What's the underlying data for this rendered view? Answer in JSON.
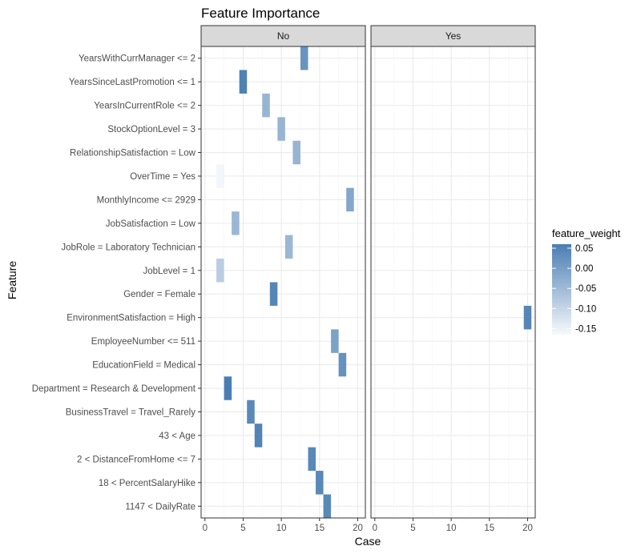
{
  "chart_data": {
    "type": "heatmap",
    "title": "Feature Importance",
    "xlabel": "Case",
    "ylabel": "Feature",
    "facets": [
      "No",
      "Yes"
    ],
    "xlim": [
      -0.5,
      21
    ],
    "xticks": [
      0,
      5,
      10,
      15,
      20
    ],
    "grid": true,
    "features": [
      "YearsWithCurrManager <= 2",
      "YearsSinceLastPromotion <= 1",
      "YearsInCurrentRole <= 2",
      "StockOptionLevel = 3",
      "RelationshipSatisfaction = Low",
      "OverTime = Yes",
      "MonthlyIncome <= 2929",
      "JobSatisfaction = Low",
      "JobRole = Laboratory Technician",
      "JobLevel = 1",
      "Gender = Female",
      "EnvironmentSatisfaction = High",
      "EmployeeNumber <= 511",
      "EducationField = Medical",
      "Department = Research & Development",
      "BusinessTravel = Travel_Rarely",
      "43 < Age",
      "2 < DistanceFromHome <= 7",
      "18 < PercentSalaryHike",
      "1147 < DailyRate"
    ],
    "tiles": [
      {
        "facet": "No",
        "case": 13,
        "feature": "YearsWithCurrManager <= 2",
        "weight": 0.02
      },
      {
        "facet": "No",
        "case": 5,
        "feature": "YearsSinceLastPromotion <= 1",
        "weight": 0.055
      },
      {
        "facet": "No",
        "case": 8,
        "feature": "YearsInCurrentRole <= 2",
        "weight": -0.04
      },
      {
        "facet": "No",
        "case": 10,
        "feature": "StockOptionLevel = 3",
        "weight": -0.04
      },
      {
        "facet": "No",
        "case": 12,
        "feature": "RelationshipSatisfaction = Low",
        "weight": -0.04
      },
      {
        "facet": "No",
        "case": 2,
        "feature": "OverTime = Yes",
        "weight": -0.16
      },
      {
        "facet": "No",
        "case": 19,
        "feature": "MonthlyIncome <= 2929",
        "weight": -0.015
      },
      {
        "facet": "No",
        "case": 4,
        "feature": "JobSatisfaction = Low",
        "weight": -0.045
      },
      {
        "facet": "No",
        "case": 11,
        "feature": "JobRole = Laboratory Technician",
        "weight": -0.045
      },
      {
        "facet": "No",
        "case": 2,
        "feature": "JobLevel = 1",
        "weight": -0.085
      },
      {
        "facet": "No",
        "case": 9,
        "feature": "Gender = Female",
        "weight": 0.045
      },
      {
        "facet": "Yes",
        "case": 20,
        "feature": "EnvironmentSatisfaction = High",
        "weight": 0.045
      },
      {
        "facet": "No",
        "case": 17,
        "feature": "EmployeeNumber <= 511",
        "weight": -0.005
      },
      {
        "facet": "No",
        "case": 18,
        "feature": "EducationField = Medical",
        "weight": 0.025
      },
      {
        "facet": "No",
        "case": 3,
        "feature": "Department = Research & Development",
        "weight": 0.06
      },
      {
        "facet": "No",
        "case": 6,
        "feature": "BusinessTravel = Travel_Rarely",
        "weight": 0.04
      },
      {
        "facet": "No",
        "case": 7,
        "feature": "43 < Age",
        "weight": 0.05
      },
      {
        "facet": "No",
        "case": 14,
        "feature": "2 < DistanceFromHome <= 7",
        "weight": 0.04
      },
      {
        "facet": "No",
        "case": 15,
        "feature": "18 < PercentSalaryHike",
        "weight": 0.04
      },
      {
        "facet": "No",
        "case": 16,
        "feature": "1147 < DailyRate",
        "weight": 0.04
      }
    ],
    "legend": {
      "title": "feature_weight",
      "position": "right",
      "breaks": [
        0.05,
        0.0,
        -0.05,
        -0.1,
        -0.15
      ],
      "labels": [
        "0.05",
        "0.00",
        "-0.05",
        "-0.10",
        "-0.15"
      ],
      "range": [
        -0.165,
        0.06
      ],
      "low_color": "#f7f9fc",
      "high_color": "#4a7eb3"
    },
    "colors": {
      "strip_fill": "#d9d9d9",
      "panel_border": "#333333",
      "grid_major": "#ebebeb",
      "grid_minor": "#f5f5f5"
    }
  }
}
